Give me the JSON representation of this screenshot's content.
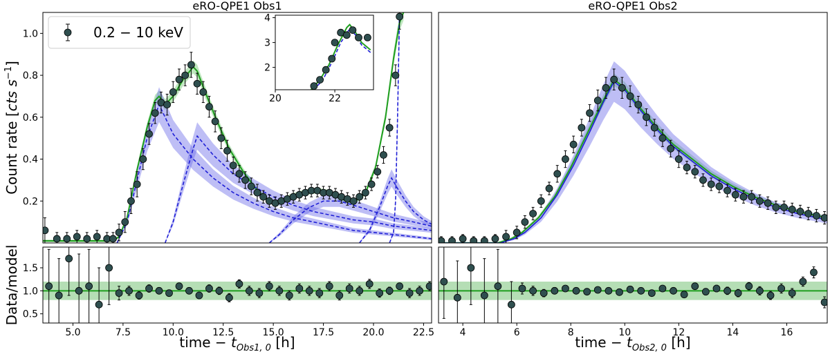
{
  "chart_data": [
    {
      "type": "scatter",
      "panel": "obs1-main",
      "title": "eRO-QPE1 Obs1",
      "ylabel": "Count rate [cts s⁻¹]",
      "xlim": [
        3.5,
        22.9
      ],
      "ylim": [
        0.0,
        1.1
      ],
      "yticks": [
        "0.2",
        "0.4",
        "0.6",
        "0.8",
        "1.0"
      ],
      "legend": {
        "label": "0.2 − 10 keV",
        "placement": "top-left"
      },
      "series": [
        {
          "role": "data",
          "color": "#2f4f4f",
          "x": [
            3.6,
            4.2,
            4.7,
            5.2,
            5.7,
            6.2,
            6.7,
            7.0,
            7.3,
            7.6,
            7.9,
            8.2,
            8.5,
            8.8,
            9.1,
            9.4,
            9.7,
            10.0,
            10.3,
            10.6,
            10.9,
            11.2,
            11.5,
            11.8,
            12.1,
            12.4,
            12.7,
            13.0,
            13.3,
            13.6,
            13.9,
            14.2,
            14.5,
            14.8,
            15.1,
            15.4,
            15.7,
            16.0,
            16.3,
            16.6,
            16.9,
            17.2,
            17.5,
            17.8,
            18.1,
            18.4,
            18.7,
            19.0,
            19.3,
            19.6,
            19.9,
            20.2,
            20.5,
            20.8,
            21.1,
            21.3
          ],
          "y": [
            0.06,
            0.02,
            0.02,
            0.03,
            0.02,
            0.03,
            0.02,
            0.02,
            0.05,
            0.1,
            0.2,
            0.28,
            0.4,
            0.52,
            0.62,
            0.67,
            0.66,
            0.72,
            0.78,
            0.8,
            0.85,
            0.76,
            0.72,
            0.65,
            0.58,
            0.5,
            0.44,
            0.37,
            0.33,
            0.3,
            0.27,
            0.24,
            0.22,
            0.2,
            0.19,
            0.2,
            0.21,
            0.22,
            0.23,
            0.24,
            0.25,
            0.25,
            0.24,
            0.24,
            0.23,
            0.22,
            0.21,
            0.2,
            0.22,
            0.24,
            0.28,
            0.34,
            0.42,
            0.55,
            0.8,
            1.08
          ],
          "yerr": [
            0.06,
            0.03,
            0.03,
            0.03,
            0.03,
            0.03,
            0.03,
            0.03,
            0.04,
            0.05,
            0.06,
            0.06,
            0.05,
            0.05,
            0.05,
            0.05,
            0.05,
            0.05,
            0.05,
            0.05,
            0.06,
            0.05,
            0.05,
            0.05,
            0.05,
            0.05,
            0.05,
            0.04,
            0.04,
            0.04,
            0.04,
            0.04,
            0.03,
            0.03,
            0.03,
            0.03,
            0.03,
            0.03,
            0.03,
            0.03,
            0.03,
            0.03,
            0.03,
            0.03,
            0.03,
            0.03,
            0.03,
            0.03,
            0.03,
            0.03,
            0.03,
            0.03,
            0.04,
            0.04,
            0.05,
            0.06
          ]
        },
        {
          "role": "model-total",
          "color": "#1f9e1f",
          "x": [
            3.5,
            7.0,
            7.3,
            7.7,
            8.2,
            8.7,
            9.1,
            9.3,
            9.6,
            10.0,
            10.5,
            11.0,
            11.2,
            11.6,
            12.2,
            12.8,
            13.5,
            14.2,
            14.8,
            15.3,
            15.8,
            16.5,
            17.2,
            17.8,
            18.4,
            19.0,
            19.6,
            20.1,
            20.6,
            21.0,
            21.3,
            21.5
          ],
          "y": [
            0.01,
            0.01,
            0.03,
            0.12,
            0.35,
            0.55,
            0.68,
            0.7,
            0.66,
            0.7,
            0.78,
            0.84,
            0.82,
            0.72,
            0.58,
            0.45,
            0.34,
            0.25,
            0.2,
            0.19,
            0.22,
            0.24,
            0.25,
            0.24,
            0.21,
            0.19,
            0.24,
            0.36,
            0.6,
            0.88,
            1.05,
            1.1
          ]
        },
        {
          "role": "model-component",
          "style": "dashed",
          "color": "#1f1fd6",
          "x": [
            7.2,
            7.7,
            8.2,
            8.7,
            9.3,
            10.0,
            11.0,
            12.0,
            13.0,
            14.0,
            15.0,
            16.0,
            17.0,
            18.0,
            19.0,
            20.0,
            21.0,
            22.9
          ],
          "y": [
            0.0,
            0.1,
            0.3,
            0.5,
            0.66,
            0.52,
            0.4,
            0.31,
            0.24,
            0.19,
            0.15,
            0.12,
            0.1,
            0.08,
            0.06,
            0.05,
            0.04,
            0.02
          ]
        },
        {
          "role": "model-component",
          "style": "dashed",
          "color": "#1f1fd6",
          "x": [
            9.6,
            10.0,
            10.5,
            11.0,
            11.2,
            12.0,
            13.0,
            14.0,
            15.0,
            16.0,
            17.0,
            18.0,
            19.0,
            20.0,
            21.0,
            22.0,
            22.9
          ],
          "y": [
            0.0,
            0.1,
            0.28,
            0.45,
            0.51,
            0.42,
            0.33,
            0.27,
            0.22,
            0.18,
            0.15,
            0.13,
            0.11,
            0.1,
            0.08,
            0.07,
            0.06
          ]
        },
        {
          "role": "model-component",
          "style": "dashed",
          "color": "#1f1fd6",
          "x": [
            14.8,
            15.3,
            16.0,
            16.8,
            17.5,
            18.3,
            19.0,
            20.0,
            21.0,
            22.0,
            22.9
          ],
          "y": [
            0.0,
            0.04,
            0.11,
            0.17,
            0.2,
            0.2,
            0.18,
            0.15,
            0.12,
            0.1,
            0.08
          ]
        },
        {
          "role": "model-component",
          "style": "dashed",
          "color": "#1f1fd6",
          "x": [
            19.3,
            19.8,
            20.3,
            20.7,
            20.9,
            21.2,
            21.6,
            22.0,
            22.5,
            22.9
          ],
          "y": [
            0.0,
            0.06,
            0.17,
            0.27,
            0.31,
            0.26,
            0.2,
            0.15,
            0.11,
            0.09
          ]
        },
        {
          "role": "model-component",
          "style": "dashed",
          "color": "#1f1fd6",
          "x": [
            20.8,
            21.0,
            21.1,
            21.2,
            21.3
          ],
          "y": [
            0.0,
            0.05,
            0.2,
            0.6,
            1.1
          ]
        }
      ]
    },
    {
      "type": "scatter",
      "panel": "obs1-inset",
      "xlim": [
        20.0,
        23.3
      ],
      "ylim": [
        1.1,
        4.1
      ],
      "xticks": [
        "20",
        "22"
      ],
      "yticks": [
        "2",
        "3",
        "4"
      ],
      "series": [
        {
          "role": "data",
          "color": "#2f4f4f",
          "x": [
            21.3,
            21.5,
            21.7,
            21.9,
            22.0,
            22.2,
            22.4,
            22.6,
            22.8,
            23.1
          ],
          "y": [
            1.25,
            1.5,
            1.9,
            2.35,
            3.0,
            3.4,
            3.3,
            3.5,
            3.2,
            3.2
          ]
        },
        {
          "role": "model-total",
          "color": "#1f9e1f",
          "x": [
            21.2,
            21.5,
            21.8,
            22.1,
            22.4,
            22.5,
            22.7,
            22.9,
            23.2
          ],
          "y": [
            1.1,
            1.5,
            2.1,
            2.9,
            3.6,
            3.72,
            3.4,
            3.0,
            2.7
          ]
        },
        {
          "role": "model-component",
          "style": "dashed",
          "color": "#1f1fd6",
          "x": [
            21.3,
            21.6,
            21.9,
            22.2,
            22.5,
            22.7,
            22.9,
            23.2
          ],
          "y": [
            1.1,
            1.5,
            2.2,
            3.0,
            3.55,
            3.3,
            2.9,
            2.6
          ]
        }
      ]
    },
    {
      "type": "scatter",
      "panel": "obs2-main",
      "title": "eRO-QPE1 Obs2",
      "xlim": [
        3.1,
        17.5
      ],
      "ylim": [
        0.0,
        1.1
      ],
      "series": [
        {
          "role": "data",
          "color": "#2f4f4f",
          "x": [
            3.2,
            3.6,
            4.0,
            4.4,
            4.8,
            5.2,
            5.6,
            6.0,
            6.3,
            6.6,
            6.9,
            7.2,
            7.5,
            7.8,
            8.1,
            8.4,
            8.7,
            9.0,
            9.3,
            9.6,
            9.9,
            10.2,
            10.5,
            10.8,
            11.1,
            11.4,
            11.7,
            12.0,
            12.3,
            12.6,
            12.9,
            13.2,
            13.5,
            13.8,
            14.1,
            14.4,
            14.7,
            15.0,
            15.3,
            15.6,
            15.9,
            16.2,
            16.5,
            16.8,
            17.1,
            17.4
          ],
          "y": [
            0.01,
            0.01,
            0.02,
            0.01,
            0.01,
            0.02,
            0.03,
            0.05,
            0.1,
            0.14,
            0.2,
            0.26,
            0.33,
            0.4,
            0.47,
            0.55,
            0.62,
            0.68,
            0.74,
            0.78,
            0.74,
            0.7,
            0.66,
            0.6,
            0.55,
            0.5,
            0.45,
            0.4,
            0.36,
            0.34,
            0.3,
            0.28,
            0.27,
            0.25,
            0.23,
            0.22,
            0.22,
            0.2,
            0.19,
            0.17,
            0.17,
            0.16,
            0.15,
            0.14,
            0.13,
            0.12
          ],
          "yerr": [
            0.02,
            0.02,
            0.02,
            0.02,
            0.02,
            0.02,
            0.03,
            0.03,
            0.03,
            0.03,
            0.03,
            0.03,
            0.04,
            0.04,
            0.04,
            0.04,
            0.04,
            0.05,
            0.05,
            0.05,
            0.05,
            0.05,
            0.04,
            0.04,
            0.04,
            0.04,
            0.04,
            0.04,
            0.03,
            0.03,
            0.03,
            0.03,
            0.03,
            0.03,
            0.03,
            0.03,
            0.03,
            0.03,
            0.03,
            0.03,
            0.03,
            0.03,
            0.03,
            0.03,
            0.03,
            0.03
          ]
        },
        {
          "role": "model-total",
          "color": "#1f9e1f",
          "x": [
            3.1,
            5.3,
            5.8,
            6.2,
            6.8,
            7.4,
            8.0,
            8.6,
            9.2,
            9.6,
            10.0,
            10.6,
            11.2,
            11.8,
            12.5,
            13.2,
            14.0,
            14.8,
            15.6,
            16.4,
            17.5
          ],
          "y": [
            0.0,
            0.0,
            0.02,
            0.05,
            0.12,
            0.22,
            0.36,
            0.52,
            0.68,
            0.78,
            0.74,
            0.64,
            0.55,
            0.47,
            0.4,
            0.33,
            0.27,
            0.22,
            0.18,
            0.15,
            0.12
          ]
        },
        {
          "role": "model-component",
          "style": "solid",
          "color": "#1f1fd6",
          "x": [
            3.1,
            5.4,
            5.9,
            6.3,
            6.9,
            7.5,
            8.1,
            8.7,
            9.2,
            9.6,
            10.0,
            10.6,
            11.2,
            11.8,
            12.5,
            13.2,
            14.0,
            14.8,
            15.6,
            16.4,
            17.5
          ],
          "y": [
            0.0,
            0.0,
            0.02,
            0.05,
            0.12,
            0.23,
            0.37,
            0.53,
            0.67,
            0.77,
            0.73,
            0.63,
            0.54,
            0.46,
            0.39,
            0.32,
            0.26,
            0.21,
            0.17,
            0.14,
            0.11
          ]
        }
      ]
    },
    {
      "type": "scatter",
      "panel": "obs1-ratio",
      "xlabel": "time − t_{Obs1, 0} [h]",
      "ylabel": "Data/model",
      "xlim": [
        3.5,
        22.9
      ],
      "ylim": [
        0.3,
        1.95
      ],
      "xticks": [
        "5.0",
        "7.5",
        "10.0",
        "12.5",
        "15.0",
        "17.5",
        "20.0",
        "22.5"
      ],
      "yticks": [
        "0.5",
        "1.0",
        "1.5"
      ],
      "band": {
        "center": 1.0,
        "half_width": 0.2,
        "color": "#2ca02c"
      },
      "series": [
        {
          "role": "data",
          "color": "#2f4f4f",
          "x": [
            3.8,
            4.3,
            4.8,
            5.3,
            5.8,
            6.3,
            6.8,
            7.3,
            7.8,
            8.3,
            8.8,
            9.3,
            9.8,
            10.3,
            10.8,
            11.3,
            11.8,
            12.3,
            12.8,
            13.3,
            13.8,
            14.3,
            14.8,
            15.3,
            15.8,
            16.3,
            16.8,
            17.3,
            17.8,
            18.3,
            18.8,
            19.3,
            19.8,
            20.3,
            20.8,
            21.3,
            21.8,
            22.3,
            22.8
          ],
          "y": [
            1.1,
            0.9,
            1.7,
            1.0,
            1.1,
            0.7,
            1.5,
            0.95,
            1.0,
            0.9,
            1.05,
            1.0,
            0.95,
            1.1,
            1.0,
            0.9,
            1.05,
            1.0,
            0.85,
            1.15,
            1.0,
            0.95,
            1.1,
            1.0,
            0.9,
            1.05,
            1.0,
            0.95,
            1.1,
            0.9,
            1.05,
            1.0,
            1.15,
            0.95,
            1.0,
            1.1,
            0.95,
            1.0,
            1.1
          ],
          "yerr": [
            0.8,
            0.8,
            0.8,
            0.8,
            0.8,
            0.8,
            0.8,
            0.15,
            0.1,
            0.08,
            0.08,
            0.07,
            0.07,
            0.07,
            0.07,
            0.07,
            0.08,
            0.08,
            0.09,
            0.09,
            0.1,
            0.1,
            0.1,
            0.1,
            0.1,
            0.1,
            0.1,
            0.1,
            0.1,
            0.1,
            0.1,
            0.1,
            0.1,
            0.09,
            0.08,
            0.07,
            0.1,
            0.1,
            0.1
          ]
        }
      ]
    },
    {
      "type": "scatter",
      "panel": "obs2-ratio",
      "xlabel": "time − t_{Obs2, 0} [h]",
      "xlim": [
        3.1,
        17.5
      ],
      "ylim": [
        0.3,
        1.95
      ],
      "xticks": [
        "4",
        "6",
        "8",
        "10",
        "12",
        "14",
        "16"
      ],
      "band": {
        "center": 1.0,
        "half_width": 0.2,
        "color": "#2ca02c"
      },
      "series": [
        {
          "role": "data",
          "color": "#2f4f4f",
          "x": [
            3.3,
            3.8,
            4.3,
            4.8,
            5.3,
            5.8,
            6.2,
            6.6,
            7.0,
            7.4,
            7.8,
            8.2,
            8.6,
            9.0,
            9.4,
            9.8,
            10.2,
            10.6,
            11.0,
            11.4,
            11.8,
            12.2,
            12.6,
            13.0,
            13.4,
            13.8,
            14.2,
            14.6,
            15.0,
            15.4,
            15.8,
            16.2,
            16.6,
            17.0,
            17.4
          ],
          "y": [
            1.2,
            0.85,
            1.5,
            0.9,
            1.1,
            0.7,
            1.05,
            1.0,
            0.95,
            1.0,
            1.05,
            1.0,
            0.98,
            1.02,
            1.0,
            0.97,
            1.03,
            1.0,
            0.95,
            1.05,
            1.0,
            0.92,
            1.1,
            0.98,
            1.05,
            1.0,
            0.95,
            1.1,
            1.0,
            0.9,
            1.05,
            0.95,
            1.2,
            1.4,
            0.75
          ],
          "yerr": [
            0.8,
            0.8,
            0.8,
            0.8,
            0.8,
            0.5,
            0.12,
            0.1,
            0.08,
            0.07,
            0.06,
            0.05,
            0.05,
            0.05,
            0.05,
            0.05,
            0.05,
            0.05,
            0.05,
            0.06,
            0.06,
            0.06,
            0.07,
            0.07,
            0.07,
            0.08,
            0.08,
            0.08,
            0.09,
            0.09,
            0.1,
            0.1,
            0.1,
            0.12,
            0.12
          ]
        }
      ]
    }
  ]
}
